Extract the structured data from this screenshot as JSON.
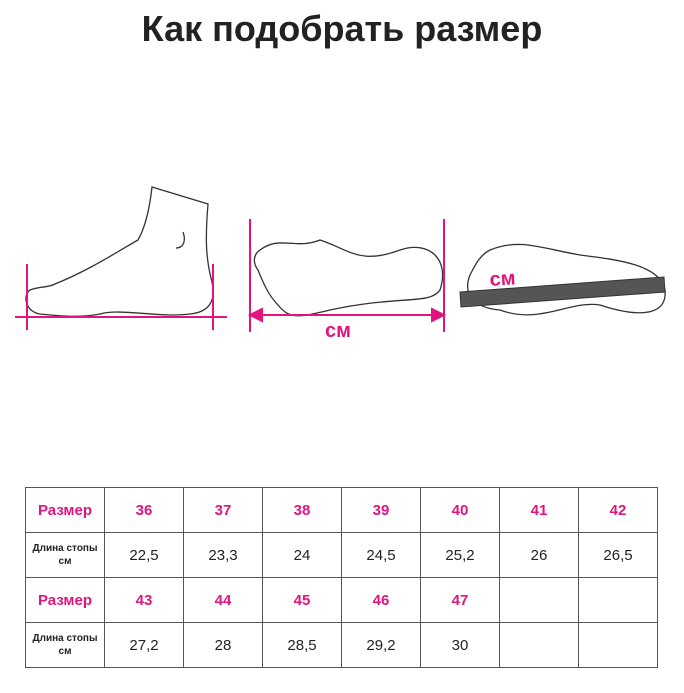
{
  "title": "Как подобрать размер",
  "illustration": {
    "unit_label_1": "см",
    "unit_label_2": "см",
    "accent_color": "#e0157e"
  },
  "table": {
    "size_label": "Размер",
    "length_label": "Длина стопы",
    "length_unit": "см",
    "blocks": [
      {
        "sizes": [
          "36",
          "37",
          "38",
          "39",
          "40",
          "41",
          "42"
        ],
        "lengths": [
          "22,5",
          "23,3",
          "24",
          "24,5",
          "25,2",
          "26",
          "26,5"
        ]
      },
      {
        "sizes": [
          "43",
          "44",
          "45",
          "46",
          "47",
          "",
          ""
        ],
        "lengths": [
          "27,2",
          "28",
          "28,5",
          "29,2",
          "30",
          "",
          ""
        ]
      }
    ]
  }
}
